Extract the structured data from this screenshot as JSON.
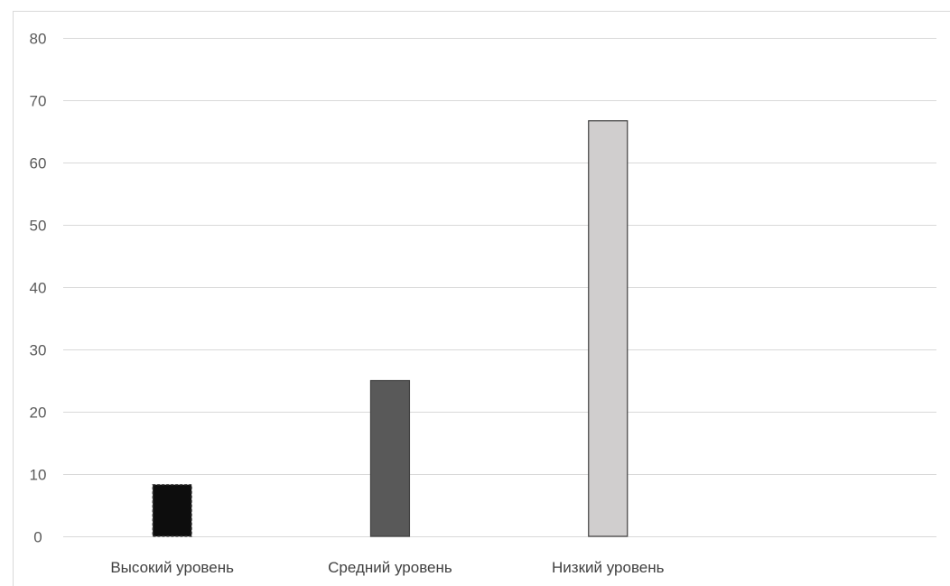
{
  "chart_data": {
    "type": "bar",
    "title": "",
    "xlabel": "",
    "ylabel": "",
    "categories": [
      "Высокий уровень",
      "Средний уровень",
      "Низкий уровень"
    ],
    "values": [
      8.3,
      25,
      66.7
    ],
    "ylim": [
      0,
      80
    ],
    "yticks": [
      0,
      10,
      20,
      30,
      40,
      50,
      60,
      70,
      80
    ],
    "grid": true,
    "legend": "none",
    "colors": [
      "#0d0d0d",
      "#595959",
      "#d0cece"
    ],
    "bar_outline": "#404040",
    "grid_color": "#d9d9d9",
    "frame_color": "#d9d9d9"
  }
}
